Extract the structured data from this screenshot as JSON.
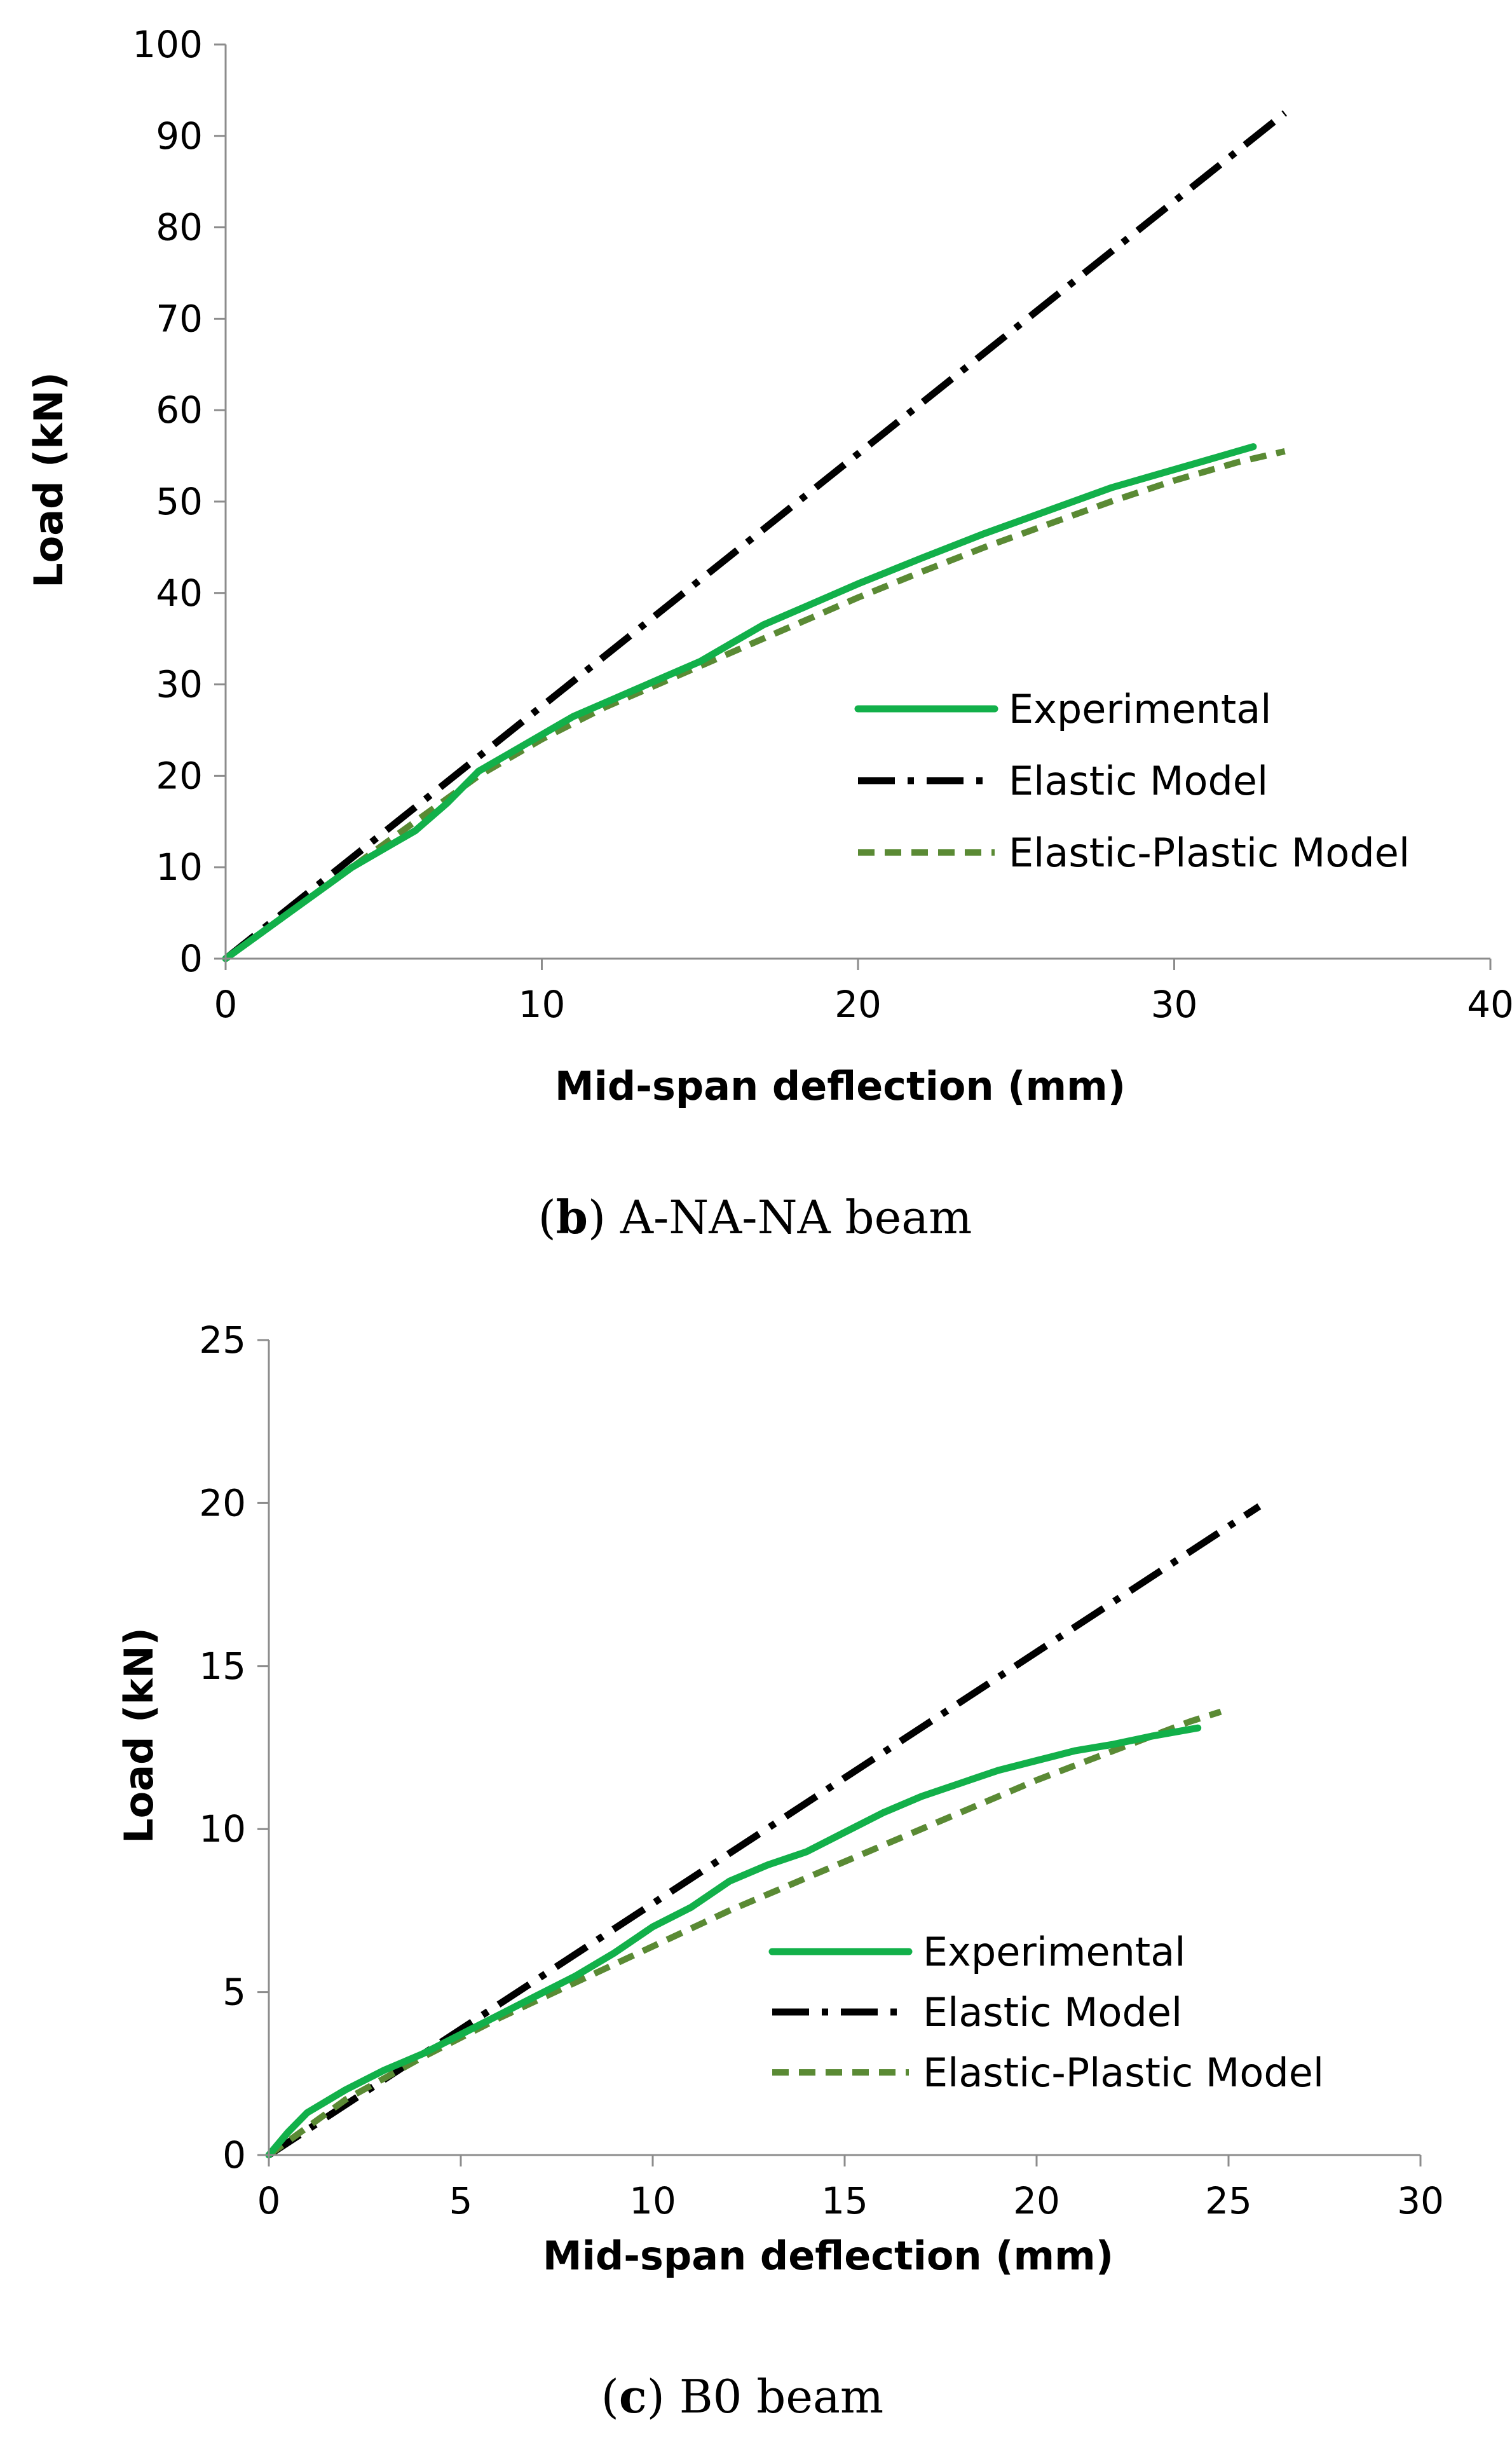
{
  "chart_data": [
    {
      "type": "line",
      "caption": {
        "open": "(",
        "letter": "b",
        "close": ")",
        "text": " A-NA-NA beam"
      },
      "xlabel": "Mid-span deflection (mm)",
      "ylabel": "Load (kN)",
      "xlim": [
        0,
        40
      ],
      "ylim": [
        0,
        100
      ],
      "xticks": [
        "0",
        "10",
        "20",
        "30",
        "40"
      ],
      "yticks": [
        "0",
        "10",
        "20",
        "30",
        "40",
        "50",
        "60",
        "70",
        "80",
        "90",
        "100"
      ],
      "legend_position": "center-right",
      "series": [
        {
          "name": "Experimental",
          "style": "solid",
          "color": "#12b04a",
          "x": [
            0,
            1,
            2,
            3,
            4,
            5,
            6,
            6.5,
            7,
            8,
            9,
            10,
            11,
            12,
            13,
            14,
            15,
            16,
            17,
            18,
            19,
            20,
            22,
            24,
            26,
            28,
            30,
            31,
            32,
            32.5
          ],
          "y": [
            0,
            2.5,
            5,
            7.5,
            10,
            12,
            14,
            15.5,
            17,
            20.5,
            22.5,
            24.5,
            26.5,
            28,
            29.5,
            31,
            32.5,
            34.5,
            36.5,
            38,
            39.5,
            41,
            43.8,
            46.5,
            49,
            51.5,
            53.5,
            54.5,
            55.5,
            56
          ]
        },
        {
          "name": "Elastic Model",
          "style": "dash-dot",
          "color": "#000000",
          "x": [
            0,
            33.5
          ],
          "y": [
            0,
            92.5
          ]
        },
        {
          "name": "Elastic-Plastic Model",
          "style": "dashed",
          "color": "#5a8a34",
          "x": [
            0,
            2,
            4,
            6,
            8,
            10,
            12,
            14,
            16,
            18,
            20,
            22,
            24,
            26,
            28,
            30,
            32,
            33.5
          ],
          "y": [
            0,
            5,
            10,
            15,
            20,
            24,
            27.5,
            30.5,
            33.5,
            36.5,
            39.5,
            42.3,
            45,
            47.5,
            50,
            52.3,
            54.3,
            55.5
          ]
        }
      ]
    },
    {
      "type": "line",
      "caption": {
        "open": "(",
        "letter": "c",
        "close": ")",
        "text": " B0 beam"
      },
      "xlabel": "Mid-span deflection (mm)",
      "ylabel": "Load (kN)",
      "xlim": [
        0,
        30
      ],
      "ylim": [
        0,
        25
      ],
      "xticks": [
        "0",
        "5",
        "10",
        "15",
        "20",
        "25",
        "30"
      ],
      "yticks": [
        "0",
        "5",
        "10",
        "15",
        "20",
        "25"
      ],
      "legend_position": "center-right",
      "series": [
        {
          "name": "Experimental",
          "style": "solid",
          "color": "#12b04a",
          "x": [
            0,
            0.5,
            1,
            2,
            3,
            4,
            5,
            6,
            7,
            8,
            9,
            10,
            11,
            12,
            13,
            14,
            15,
            16,
            17,
            18,
            19,
            20,
            21,
            22,
            23,
            24.2
          ],
          "y": [
            0,
            0.7,
            1.3,
            2.0,
            2.6,
            3.1,
            3.7,
            4.3,
            4.9,
            5.5,
            6.2,
            7.0,
            7.6,
            8.4,
            8.9,
            9.3,
            9.9,
            10.5,
            11.0,
            11.4,
            11.8,
            12.1,
            12.4,
            12.6,
            12.85,
            13.1
          ]
        },
        {
          "name": "Elastic Model",
          "style": "dash-dot",
          "color": "#000000",
          "x": [
            0,
            25.8
          ],
          "y": [
            0,
            19.9
          ]
        },
        {
          "name": "Elastic-Plastic Model",
          "style": "dashed",
          "color": "#5a8a34",
          "x": [
            0,
            2,
            4,
            6,
            8,
            10,
            12,
            14,
            16,
            18,
            20,
            22,
            24,
            24.8
          ],
          "y": [
            0,
            1.7,
            3.0,
            4.2,
            5.3,
            6.4,
            7.5,
            8.5,
            9.5,
            10.5,
            11.5,
            12.4,
            13.3,
            13.6
          ]
        }
      ]
    }
  ]
}
